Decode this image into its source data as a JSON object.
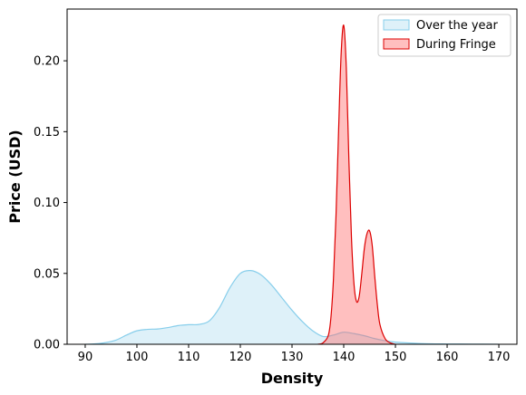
{
  "chart_data": {
    "type": "area",
    "title": "",
    "xlabel": "Density",
    "ylabel": "Price (USD)",
    "xlim": [
      86.5,
      173.5
    ],
    "ylim": [
      0,
      0.2365
    ],
    "xticks": [
      90,
      100,
      110,
      120,
      130,
      140,
      150,
      160,
      170
    ],
    "yticks": [
      0.0,
      0.05,
      0.1,
      0.15,
      0.2
    ],
    "ytick_labels": [
      "0.00",
      "0.05",
      "0.10",
      "0.15",
      "0.20"
    ],
    "grid": false,
    "legend_position": "top-right",
    "series": [
      {
        "name": "Over the year",
        "line_color": "#87ceeb",
        "fill_color": "#87ceeb",
        "fill_opacity": 0.28,
        "x": [
          90,
          92,
          94,
          96,
          98,
          100,
          102,
          104,
          106,
          108,
          110,
          112,
          114,
          116,
          118,
          120,
          122,
          124,
          126,
          128,
          130,
          132,
          134,
          136,
          138,
          140,
          142,
          144,
          146,
          148,
          150,
          155,
          160,
          165,
          170
        ],
        "y": [
          0.0,
          0.0003,
          0.0012,
          0.003,
          0.0065,
          0.0095,
          0.0105,
          0.0108,
          0.0118,
          0.0132,
          0.0138,
          0.014,
          0.0165,
          0.026,
          0.04,
          0.05,
          0.052,
          0.049,
          0.042,
          0.033,
          0.024,
          0.016,
          0.0095,
          0.0055,
          0.0065,
          0.0085,
          0.0075,
          0.006,
          0.004,
          0.0025,
          0.0015,
          0.0005,
          0.0002,
          0.0001,
          0.0
        ]
      },
      {
        "name": "During Fringe",
        "line_color": "#dd0000",
        "fill_color": "#ff6666",
        "fill_opacity": 0.42,
        "x": [
          135,
          136,
          137,
          137.5,
          138,
          138.5,
          139,
          139.5,
          140,
          140.5,
          141,
          141.5,
          142,
          142.5,
          143,
          143.5,
          144,
          144.5,
          145,
          145.5,
          146,
          146.5,
          147,
          148,
          149,
          150
        ],
        "y": [
          0.0,
          0.001,
          0.006,
          0.018,
          0.045,
          0.09,
          0.15,
          0.205,
          0.225,
          0.195,
          0.13,
          0.075,
          0.042,
          0.03,
          0.034,
          0.05,
          0.068,
          0.078,
          0.08,
          0.07,
          0.048,
          0.028,
          0.014,
          0.004,
          0.001,
          0.0
        ]
      }
    ]
  }
}
